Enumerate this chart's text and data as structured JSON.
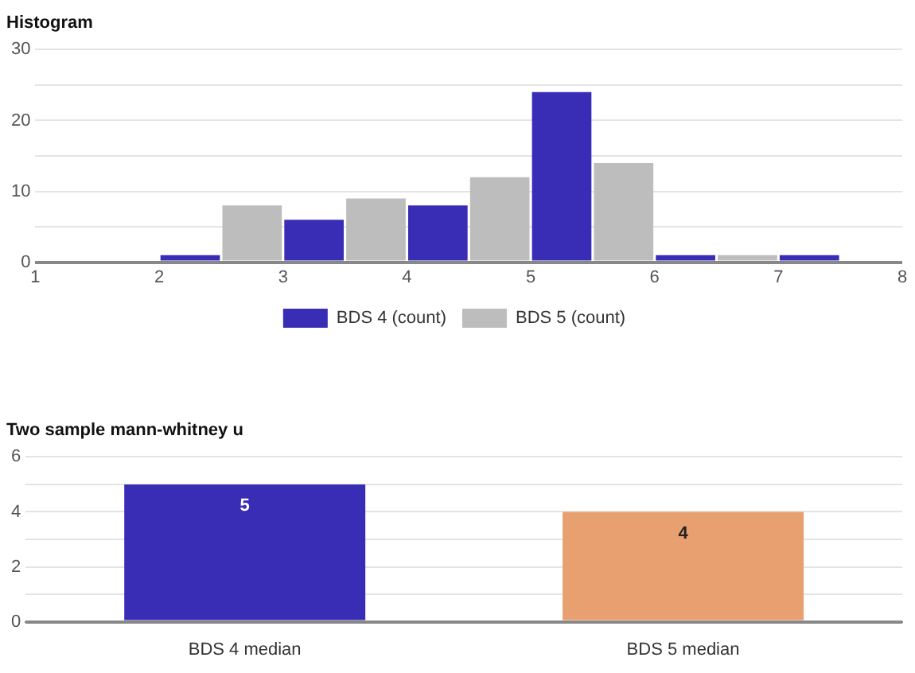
{
  "chart_data": [
    {
      "type": "histogram",
      "title": "Histogram",
      "bins": [
        2,
        2.5,
        3,
        3.5,
        4,
        4.5,
        5,
        5.5,
        6,
        6.5,
        7,
        7.5
      ],
      "series": [
        {
          "name": "BDS 4 (count)",
          "color": "#3a2db5",
          "values": [
            1,
            null,
            6,
            null,
            8,
            null,
            24,
            null,
            1,
            null,
            1
          ]
        },
        {
          "name": "BDS 5 (count)",
          "color": "#bdbdbd",
          "values": [
            null,
            8,
            null,
            9,
            null,
            12,
            null,
            14,
            null,
            1,
            null
          ]
        }
      ],
      "xlim": [
        1,
        8
      ],
      "xticks": [
        1,
        2,
        3,
        4,
        5,
        6,
        7,
        8
      ],
      "ylim": [
        0,
        30
      ],
      "yticks": [
        0,
        {
          "value": 5,
          "label": null
        },
        10,
        {
          "value": 15,
          "label": null
        },
        20,
        {
          "value": 25,
          "label": null
        },
        30
      ],
      "grid": "y",
      "legend": "bottom"
    },
    {
      "type": "bar",
      "title": "Two sample mann-whitney u",
      "categories": [
        "BDS 4 median",
        "BDS 5 median"
      ],
      "values": [
        5,
        4
      ],
      "colors": [
        "#3a2db5",
        "#e8a070"
      ],
      "ylim": [
        0,
        6
      ],
      "yticks": [
        0,
        {
          "value": 1,
          "label": null
        },
        2,
        {
          "value": 3,
          "label": null
        },
        4,
        {
          "value": 5,
          "label": null
        },
        6
      ],
      "grid": "y",
      "data_labels": true
    }
  ]
}
